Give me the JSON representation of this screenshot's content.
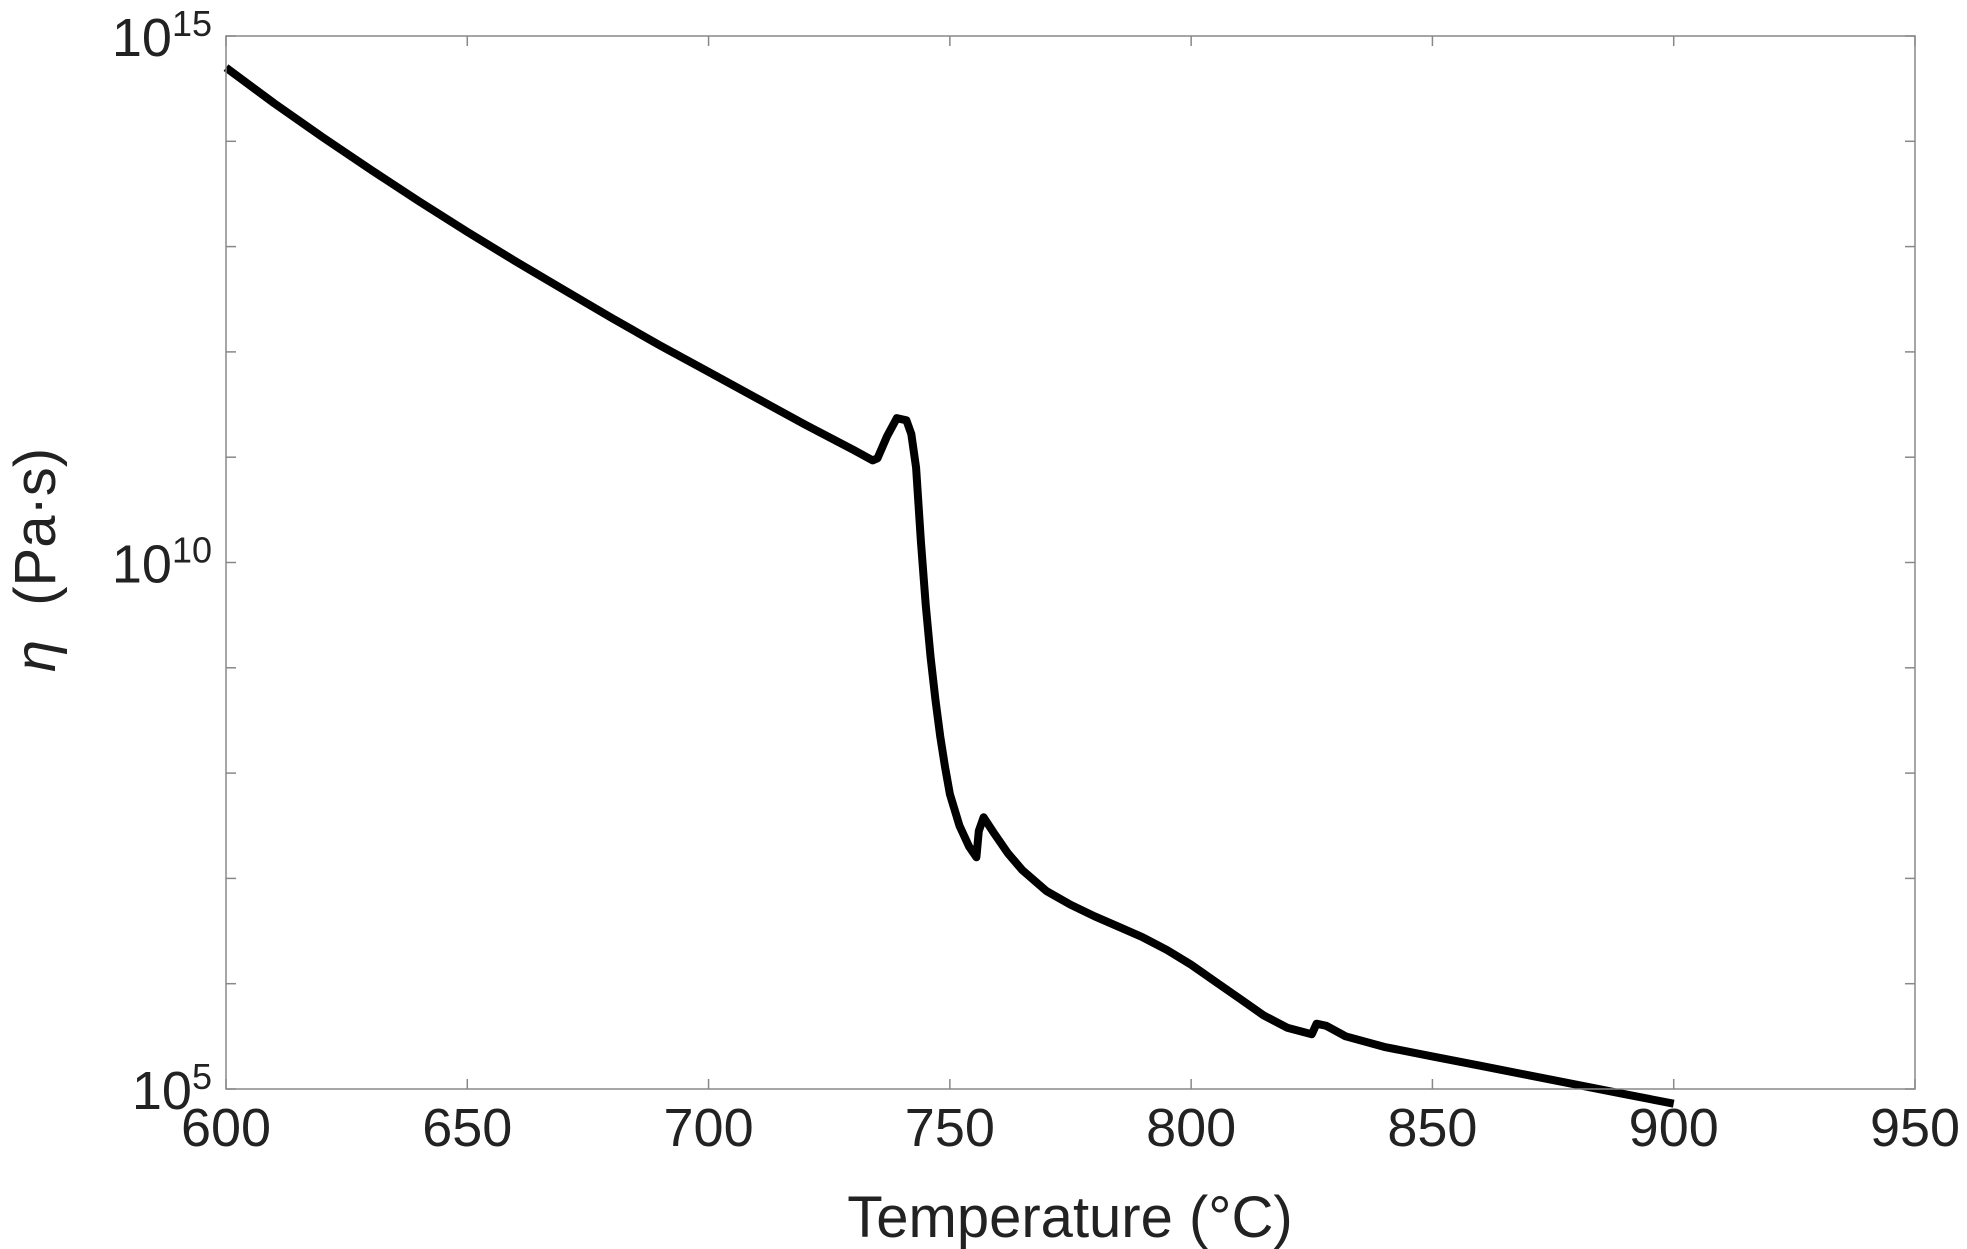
{
  "chart_data": {
    "type": "line",
    "title": "",
    "xlabel": "Temperature (°C)",
    "ylabel": {
      "symbol": "η",
      "unit": "(Pa·s)"
    },
    "xlim": [
      600,
      950
    ],
    "ylim": [
      100000,
      1000000000000000
    ],
    "yscale": "log",
    "grid": false,
    "xticks": [
      "600",
      "650",
      "700",
      "750",
      "800",
      "850",
      "900",
      "950"
    ],
    "yticks": [
      {
        "base": "10",
        "exponent": "5",
        "value": 100000
      },
      {
        "base": "10",
        "exponent": "10",
        "value": 10000000000
      },
      {
        "base": "10",
        "exponent": "15",
        "value": 1000000000000000
      }
    ],
    "series": [
      {
        "color": "#000000",
        "log10_y": true,
        "points": [
          [
            600,
            14.7
          ],
          [
            610,
            14.36
          ],
          [
            620,
            14.04
          ],
          [
            630,
            13.73
          ],
          [
            640,
            13.43
          ],
          [
            650,
            13.14
          ],
          [
            660,
            12.86
          ],
          [
            670,
            12.59
          ],
          [
            680,
            12.32
          ],
          [
            690,
            12.06
          ],
          [
            700,
            11.81
          ],
          [
            710,
            11.56
          ],
          [
            720,
            11.31
          ],
          [
            730,
            11.07
          ],
          [
            734,
            10.97
          ],
          [
            735,
            10.99
          ],
          [
            737,
            11.2
          ],
          [
            739,
            11.37
          ],
          [
            741,
            11.35
          ],
          [
            742,
            11.22
          ],
          [
            743,
            10.9
          ],
          [
            744,
            10.2
          ],
          [
            745,
            9.6
          ],
          [
            746,
            9.1
          ],
          [
            747,
            8.7
          ],
          [
            748,
            8.35
          ],
          [
            749,
            8.06
          ],
          [
            750,
            7.8
          ],
          [
            752,
            7.5
          ],
          [
            754,
            7.3
          ],
          [
            755.5,
            7.2
          ],
          [
            756,
            7.45
          ],
          [
            757,
            7.58
          ],
          [
            759,
            7.44
          ],
          [
            762,
            7.24
          ],
          [
            765,
            7.08
          ],
          [
            770,
            6.88
          ],
          [
            775,
            6.75
          ],
          [
            780,
            6.64
          ],
          [
            785,
            6.54
          ],
          [
            790,
            6.44
          ],
          [
            795,
            6.32
          ],
          [
            800,
            6.18
          ],
          [
            805,
            6.02
          ],
          [
            810,
            5.86
          ],
          [
            815,
            5.7
          ],
          [
            820,
            5.58
          ],
          [
            825,
            5.52
          ],
          [
            826,
            5.62
          ],
          [
            828,
            5.6
          ],
          [
            832,
            5.5
          ],
          [
            840,
            5.4
          ],
          [
            850,
            5.31
          ],
          [
            860,
            5.22
          ],
          [
            870,
            5.13
          ],
          [
            880,
            5.04
          ],
          [
            890,
            4.95
          ],
          [
            900,
            4.86
          ]
        ]
      }
    ]
  }
}
